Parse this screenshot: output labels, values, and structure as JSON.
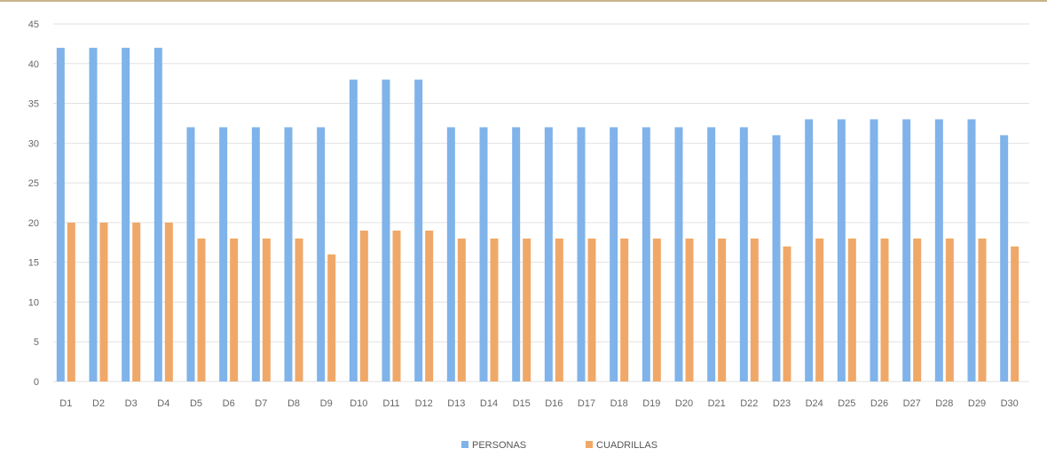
{
  "chart_data": {
    "type": "bar",
    "categories": [
      "D1",
      "D2",
      "D3",
      "D4",
      "D5",
      "D6",
      "D7",
      "D8",
      "D9",
      "D10",
      "D11",
      "D12",
      "D13",
      "D14",
      "D15",
      "D16",
      "D17",
      "D18",
      "D19",
      "D20",
      "D21",
      "D22",
      "D23",
      "D24",
      "D25",
      "D26",
      "D27",
      "D28",
      "D29",
      "D30"
    ],
    "series": [
      {
        "name": "PERSONAS",
        "color": "#7fb3ea",
        "values": [
          42,
          42,
          42,
          42,
          32,
          32,
          32,
          32,
          32,
          38,
          38,
          38,
          32,
          32,
          32,
          32,
          32,
          32,
          32,
          32,
          32,
          32,
          31,
          33,
          33,
          33,
          33,
          33,
          33,
          31
        ]
      },
      {
        "name": "CUADRILLAS",
        "color": "#f0a868",
        "values": [
          20,
          20,
          20,
          20,
          18,
          18,
          18,
          18,
          16,
          19,
          19,
          19,
          18,
          18,
          18,
          18,
          18,
          18,
          18,
          18,
          18,
          18,
          17,
          18,
          18,
          18,
          18,
          18,
          18,
          17
        ]
      }
    ],
    "ylim": [
      0,
      45
    ],
    "yticks": [
      0,
      5,
      10,
      15,
      20,
      25,
      30,
      35,
      40,
      45
    ],
    "grid": true,
    "legend": "bottom-center"
  }
}
